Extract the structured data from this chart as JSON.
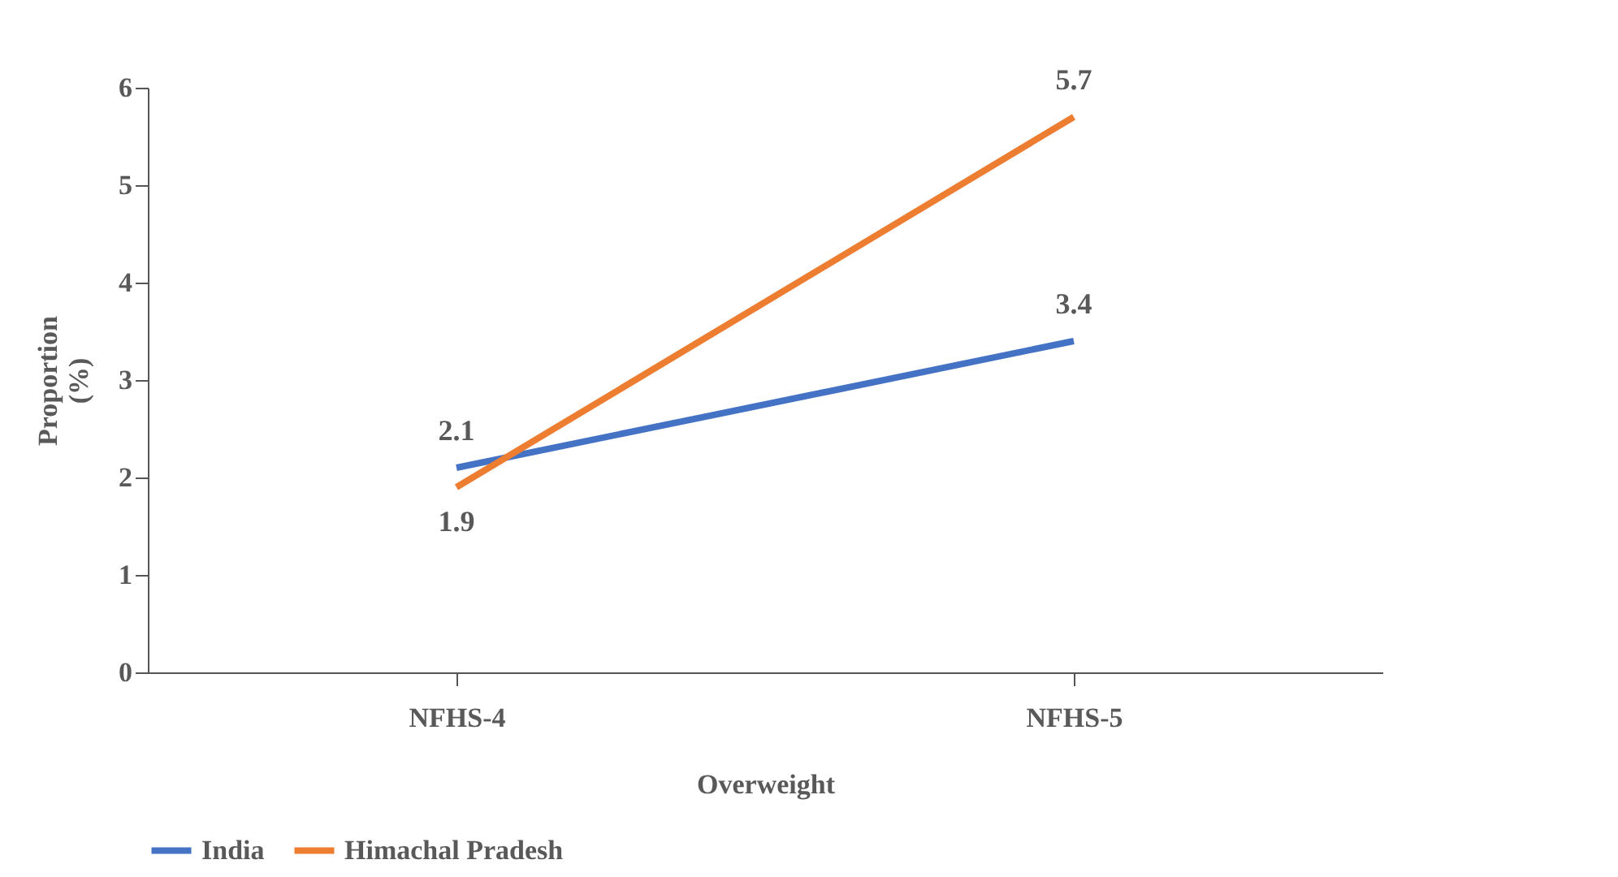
{
  "chart_data": {
    "type": "line",
    "xlabel": "Overweight",
    "ylabel": "Proportion (%)",
    "categories": [
      "NFHS-4",
      "NFHS-5"
    ],
    "series": [
      {
        "name": "India",
        "color": "#4472c4",
        "values": [
          2.1,
          3.4
        ]
      },
      {
        "name": "Himachal Pradesh",
        "color": "#ed7d31",
        "values": [
          1.9,
          5.7
        ]
      }
    ],
    "ylim": [
      0,
      6
    ],
    "yticks": [
      0,
      1,
      2,
      3,
      4,
      5,
      6
    ],
    "grid": false,
    "legend": "bottom",
    "data_labels": true,
    "marker": "none",
    "line_style": "solid"
  }
}
